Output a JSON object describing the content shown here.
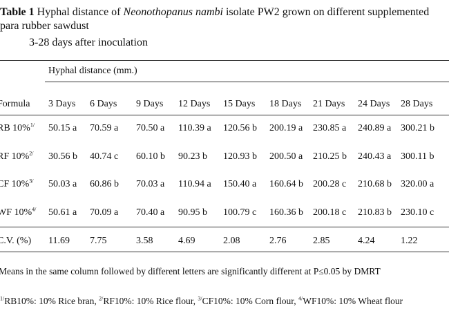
{
  "caption": {
    "label": "Table 1",
    "text_pre": " Hyphal distance of ",
    "species": "Neonothopanus nambi",
    "text_post": " isolate PW2 grown on different supplemented para rubber sawdust",
    "line2": "3-28 days after inoculation"
  },
  "table": {
    "group_header": "Hyphal distance (mm.)",
    "first_col_header": "Formula",
    "day_headers": [
      "3 Days",
      "6 Days",
      "9 Days",
      "12 Days",
      "15 Days",
      "18 Days",
      "21 Days",
      "24 Days",
      "28 Days"
    ],
    "rows": [
      {
        "label": "RB 10%",
        "sup": "1/",
        "values": [
          "50.15 a",
          "70.59 a",
          "70.50 a",
          "110.39 a",
          "120.56 b",
          "200.19 a",
          "230.85 a",
          "240.89 a",
          "300.21 b"
        ]
      },
      {
        "label": "RF 10%",
        "sup": "2/",
        "values": [
          "30.56 b",
          "40.74 c",
          "60.10 b",
          "90.23 b",
          "120.93 b",
          "200.50 a",
          "210.25 b",
          "240.43 a",
          "300.11 b"
        ]
      },
      {
        "label": "CF 10%",
        "sup": "3/",
        "values": [
          "50.03 a",
          "60.86 b",
          "70.03 a",
          "110.94 a",
          "150.40 a",
          "160.64 b",
          "200.28 c",
          "210.68 b",
          "320.00 a"
        ]
      },
      {
        "label": "WF 10%",
        "sup": "4/",
        "values": [
          "50.61 a",
          "70.09 a",
          "70.40 a",
          "90.95 b",
          "100.79 c",
          "160.36 b",
          "200.18 c",
          "210.83 b",
          "230.10 c"
        ]
      }
    ],
    "cv_row": {
      "label": "C.V. (%)",
      "values": [
        "11.69",
        "7.75",
        "3.58",
        "4.69",
        "2.08",
        "2.76",
        "2.85",
        "4.24",
        "1.22"
      ]
    }
  },
  "footnotes": {
    "significance": "Means in the same column followed by different letters are significantly different at P≤0.05 by DMRT",
    "abbreviations": [
      {
        "sup": "1/",
        "text": "RB10%: 10% Rice bran,"
      },
      {
        "sup": "2/",
        "text": "RF10%: 10% Rice flour,"
      },
      {
        "sup": "3/",
        "text": "CF10%: 10% Corn flour,"
      },
      {
        "sup": "4/",
        "text": "WF10%: 10% Wheat flour"
      }
    ]
  }
}
